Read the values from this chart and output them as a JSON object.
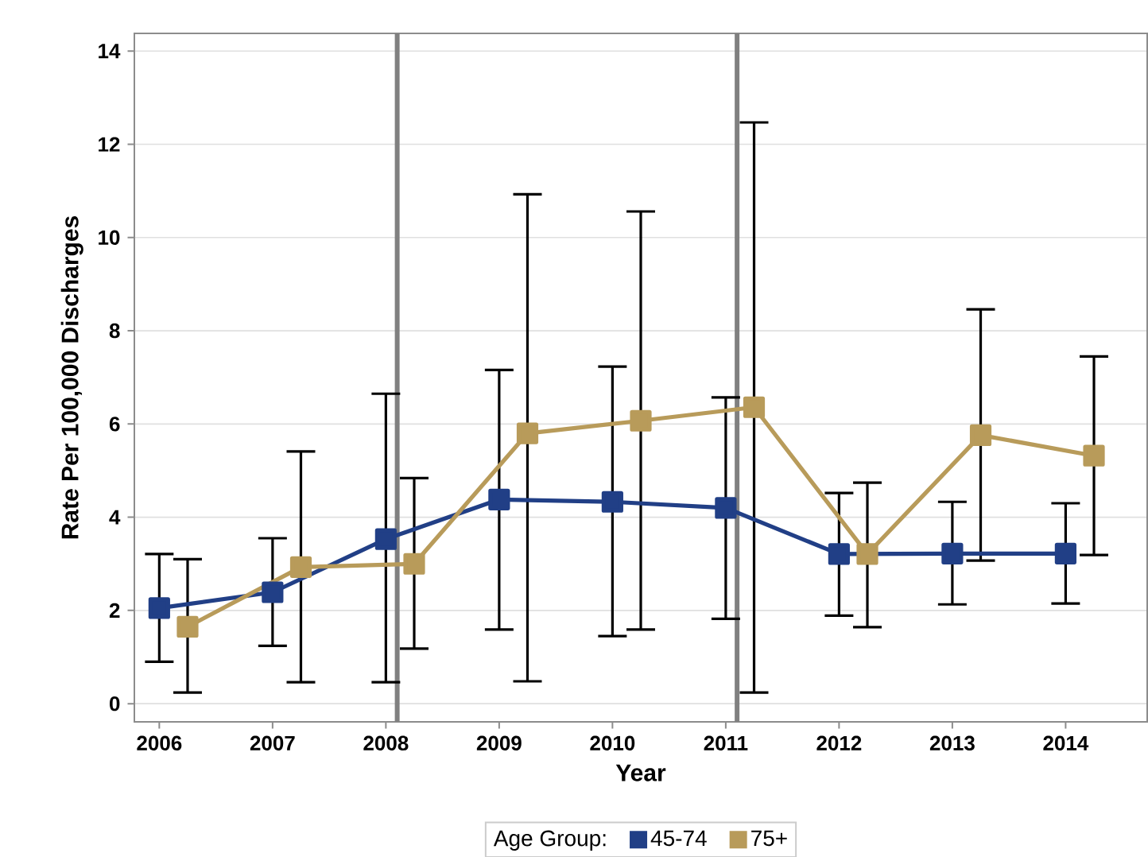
{
  "chart_data": {
    "type": "line",
    "xlabel": "Year",
    "ylabel": "Rate Per 100,000 Discharges",
    "legend_title": "Age Group:",
    "legend": "bottom",
    "grid": "y",
    "marker": "square",
    "line_style": "solid",
    "xlim": [
      2005.78,
      2014.72
    ],
    "ylim": [
      -0.39,
      14.38
    ],
    "xticks": [
      2006,
      2007,
      2008,
      2009,
      2010,
      2011,
      2012,
      2013,
      2014
    ],
    "yticks": [
      0,
      2,
      4,
      6,
      8,
      10,
      12,
      14
    ],
    "ref_lines": [
      {
        "axis": "x",
        "value": 2008.1,
        "color": "#808080"
      },
      {
        "axis": "x",
        "value": 2011.1,
        "color": "#808080"
      }
    ],
    "series": [
      {
        "name": "45-74",
        "color": "#213f86",
        "x": [
          2006,
          2007,
          2008,
          2009,
          2010,
          2011,
          2012,
          2013,
          2014
        ],
        "values": [
          2.05,
          2.39,
          3.53,
          4.38,
          4.33,
          4.2,
          3.21,
          3.22,
          3.22
        ],
        "errors": [
          [
            0.9,
            3.21
          ],
          [
            1.24,
            3.55
          ],
          [
            0.46,
            6.65
          ],
          [
            1.59,
            7.16
          ],
          [
            1.45,
            7.23
          ],
          [
            1.82,
            6.57
          ],
          [
            1.89,
            4.52
          ],
          [
            2.13,
            4.33
          ],
          [
            2.15,
            4.3
          ]
        ]
      },
      {
        "name": "75+",
        "color": "#b89b5a",
        "x": [
          2006.25,
          2007.25,
          2008.25,
          2009.25,
          2010.25,
          2011.25,
          2012.25,
          2013.25,
          2014.25
        ],
        "values": [
          1.65,
          2.93,
          3.0,
          5.8,
          6.07,
          6.36,
          3.21,
          5.76,
          5.32
        ],
        "errors": [
          [
            0.24,
            3.1
          ],
          [
            0.46,
            5.41
          ],
          [
            1.18,
            4.84
          ],
          [
            0.48,
            10.93
          ],
          [
            1.59,
            10.56
          ],
          [
            0.24,
            12.47
          ],
          [
            1.64,
            4.74
          ],
          [
            3.07,
            8.46
          ],
          [
            3.19,
            7.45
          ]
        ]
      }
    ]
  }
}
